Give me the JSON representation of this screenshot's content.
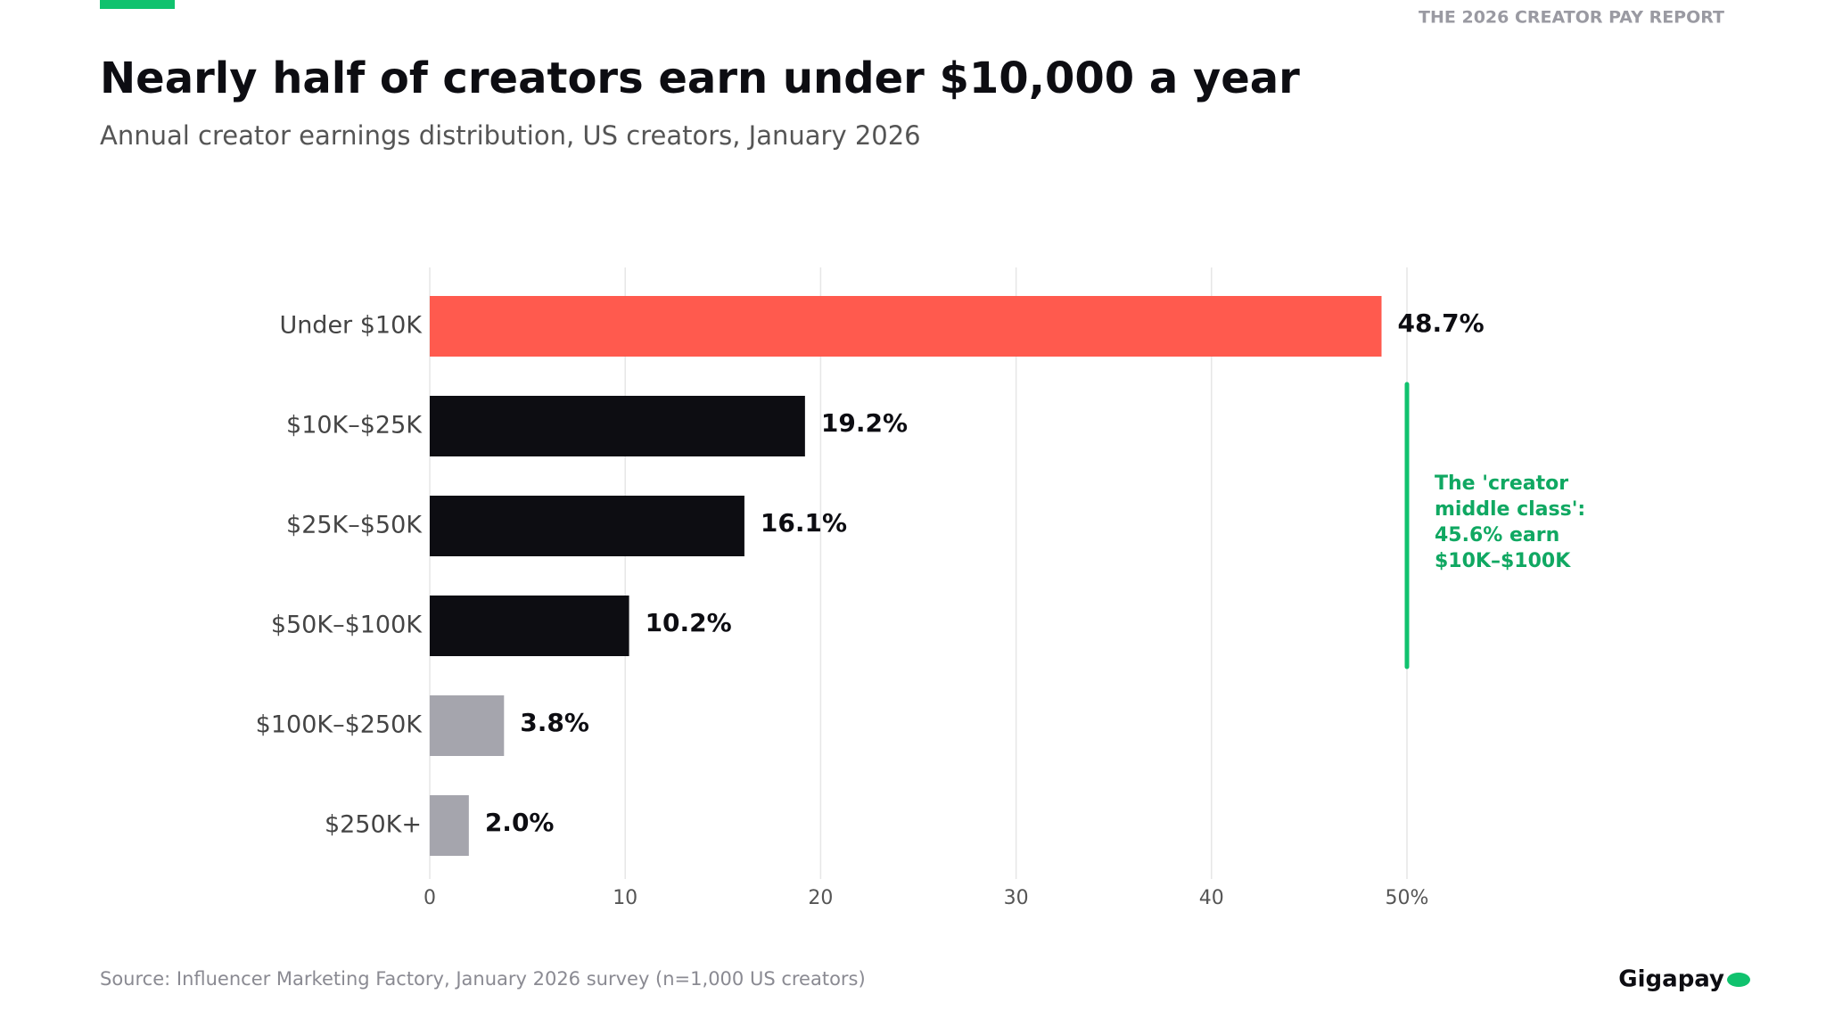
{
  "header": {
    "report": "THE 2026 CREATOR PAY REPORT"
  },
  "chart_data": {
    "type": "bar",
    "orientation": "horizontal",
    "title": "Nearly half of creators earn under $10,000 a year",
    "subtitle": "Annual creator earnings distribution, US creators, January 2026",
    "categories": [
      "Under $10K",
      "$10K–$25K",
      "$25K–$50K",
      "$50K–$100K",
      "$100K–$250K",
      "$250K+"
    ],
    "values": [
      48.7,
      19.2,
      16.1,
      10.2,
      3.8,
      2.0
    ],
    "value_labels": [
      "48.7%",
      "19.2%",
      "16.1%",
      "10.2%",
      "3.8%",
      "2.0%"
    ],
    "colors": [
      "#ff5a4e",
      "#0d0d12",
      "#0d0d12",
      "#0d0d12",
      "#a5a5ad",
      "#a5a5ad"
    ],
    "xlim": [
      0,
      50
    ],
    "xticks": [
      0,
      10,
      20,
      30,
      40,
      {
        "value": 50,
        "label": "50%"
      }
    ],
    "grid": true,
    "annotation": "The 'creator middle class': 45.6% earn $10K–$100K",
    "source": "Source: Influencer Marketing Factory, January 2026 survey (n=1,000 US creators)"
  },
  "footer": {
    "brand": "Gigapay"
  }
}
